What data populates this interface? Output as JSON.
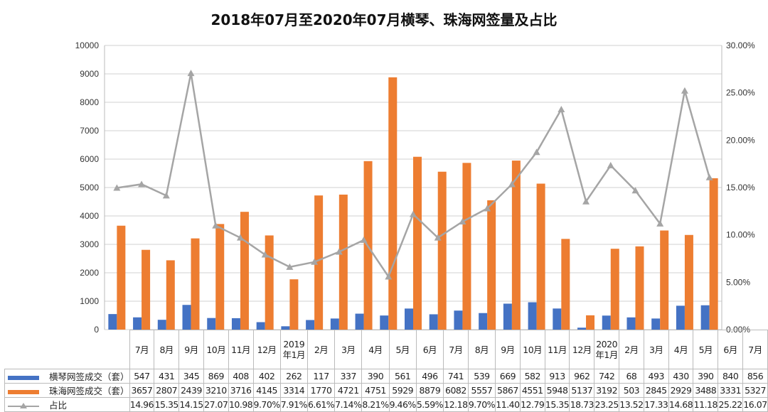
{
  "chart_data": {
    "type": "bar",
    "title": "2018年07月至2020年07月横琴、珠海网签量及占比",
    "categories": [
      "7月",
      "8月",
      "9月",
      "10月",
      "11月",
      "12月",
      "2019年1月",
      "2月",
      "3月",
      "4月",
      "5月",
      "6月",
      "7月",
      "8月",
      "9月",
      "10月",
      "11月",
      "12月",
      "2020年1月",
      "2月",
      "3月",
      "4月",
      "5月",
      "6月",
      "7月"
    ],
    "category_lines": [
      [
        "7月"
      ],
      [
        "8月"
      ],
      [
        "9月"
      ],
      [
        "10月"
      ],
      [
        "11月"
      ],
      [
        "12月"
      ],
      [
        "2019",
        "年1月"
      ],
      [
        "2月"
      ],
      [
        "3月"
      ],
      [
        "4月"
      ],
      [
        "5月"
      ],
      [
        "6月"
      ],
      [
        "7月"
      ],
      [
        "8月"
      ],
      [
        "9月"
      ],
      [
        "10月"
      ],
      [
        "11月"
      ],
      [
        "12月"
      ],
      [
        "2020",
        "年1月"
      ],
      [
        "2月"
      ],
      [
        "3月"
      ],
      [
        "4月"
      ],
      [
        "5月"
      ],
      [
        "6月"
      ],
      [
        "7月"
      ]
    ],
    "series": [
      {
        "name": "横琴网签成交（套）",
        "type": "bar",
        "axis": "left",
        "color": "#4472C4",
        "values": [
          547,
          431,
          345,
          869,
          408,
          402,
          262,
          117,
          337,
          390,
          561,
          496,
          741,
          539,
          669,
          582,
          913,
          962,
          742,
          68,
          493,
          430,
          390,
          840,
          856
        ]
      },
      {
        "name": "珠海网签成交（套）",
        "type": "bar",
        "axis": "left",
        "color": "#ED7D31",
        "values": [
          3657,
          2807,
          2439,
          3210,
          3716,
          4145,
          3314,
          1770,
          4721,
          4751,
          5929,
          8879,
          6082,
          5557,
          5867,
          4551,
          5948,
          5137,
          3192,
          503,
          2845,
          2929,
          3488,
          3331,
          5327
        ]
      },
      {
        "name": "占比",
        "type": "line",
        "axis": "right",
        "color": "#A5A5A5",
        "values": [
          14.96,
          15.35,
          14.15,
          27.07,
          10.98,
          9.7,
          7.91,
          6.61,
          7.14,
          8.21,
          9.46,
          5.59,
          12.18,
          9.7,
          11.4,
          12.79,
          15.35,
          18.73,
          23.25,
          13.52,
          17.33,
          14.68,
          11.18,
          25.22,
          16.07
        ],
        "table_labels": [
          "14.96",
          "15.35",
          "14.15",
          "27.07",
          "10.98",
          "9.70%",
          "7.91%",
          "6.61%",
          "7.14%",
          "8.21%",
          "9.46%",
          "5.59%",
          "12.18",
          "9.70%",
          "11.40",
          "12.79",
          "15.35",
          "18.73",
          "23.25",
          "13.52",
          "17.33",
          "14.68",
          "11.18",
          "25.22",
          "16.07"
        ]
      }
    ],
    "y_left": {
      "range": [
        0,
        10000
      ],
      "ticks": [
        "0",
        "1000",
        "2000",
        "3000",
        "4000",
        "5000",
        "6000",
        "7000",
        "8000",
        "9000",
        "10000"
      ]
    },
    "y_right": {
      "range": [
        0,
        30
      ],
      "unit": "%",
      "ticks": [
        "0.00%",
        "5.00%",
        "10.00%",
        "15.00%",
        "20.00%",
        "25.00%",
        "30.00%"
      ]
    },
    "grid": true,
    "legend": "data-table-below"
  }
}
